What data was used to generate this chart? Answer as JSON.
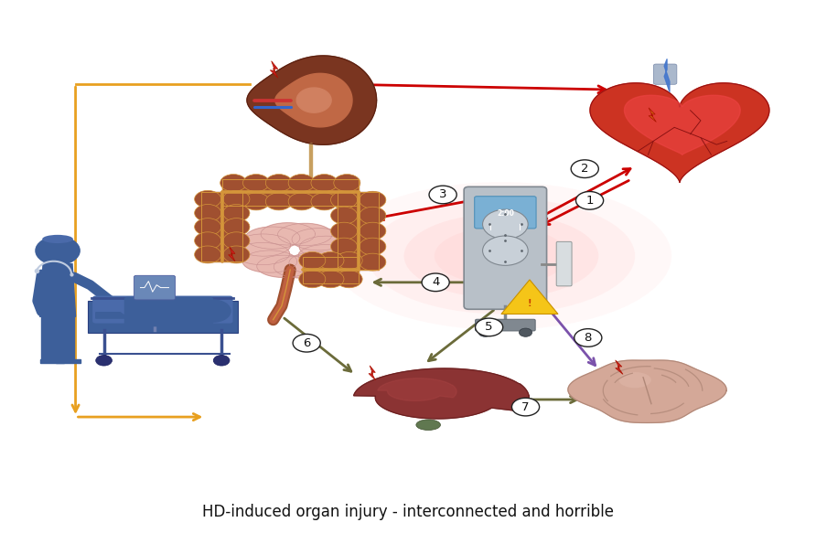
{
  "title": "HD-induced organ injury - interconnected and horrible",
  "title_fontsize": 12,
  "background_color": "#ffffff",
  "figsize": [
    8.92,
    5.83
  ],
  "dpi": 100,
  "orange_color": "#e8a020",
  "red_arrow_color": "#cc0000",
  "olive_arrow_color": "#6b6b3a",
  "purple_arrow_color": "#7b52ab",
  "blue_silhouette": "#3d5f9a",
  "blue_light": "#6a88b8",
  "kidney_dark": "#7a3520",
  "kidney_mid": "#9a4525",
  "kidney_light": "#c06845",
  "heart_red": "#cc2222",
  "heart_dark": "#991111",
  "intestine_outer": "#a05030",
  "intestine_pink": "#e8b0a0",
  "intestine_orange_outline": "#d4953a",
  "liver_color": "#8B3333",
  "liver_dark": "#6B2020",
  "brain_color": "#d4a898",
  "brain_dark": "#b08878",
  "lightning_red": "#cc2222",
  "lightning_orange": "#d46010",
  "glow_color": "#ffaaaa",
  "hd_body": "#b8c0c8",
  "hd_screen": "#7ab0d4",
  "hd_dark": "#808890"
}
